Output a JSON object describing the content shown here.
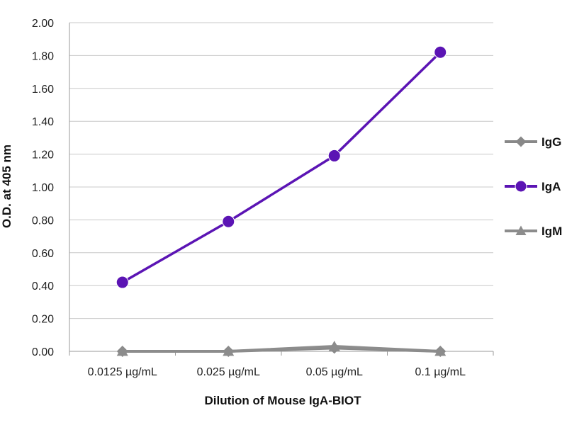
{
  "chart_data": {
    "type": "line",
    "title": "",
    "xlabel": "Dilution of Mouse IgA-BIOT",
    "ylabel": "O.D. at 405 nm",
    "categories": [
      "0.0125 µg/mL",
      "0.025 µg/mL",
      "0.05 µg/mL",
      "0.1 µg/mL"
    ],
    "ylim": [
      0,
      2.0
    ],
    "yticks": [
      "0.00",
      "0.20",
      "0.40",
      "0.60",
      "0.80",
      "1.00",
      "1.20",
      "1.40",
      "1.60",
      "1.80",
      "2.00"
    ],
    "grid": true,
    "legend_position": "right",
    "series": [
      {
        "name": "IgG",
        "marker": "diamond",
        "color": "#888888",
        "values": [
          0.0,
          0.0,
          0.02,
          0.0
        ]
      },
      {
        "name": "IgA",
        "marker": "circle",
        "color": "#5b14b4",
        "values": [
          0.42,
          0.79,
          1.19,
          1.82
        ]
      },
      {
        "name": "IgM",
        "marker": "triangle",
        "color": "#8c8c8c",
        "values": [
          0.0,
          0.0,
          0.03,
          0.0
        ]
      }
    ]
  }
}
